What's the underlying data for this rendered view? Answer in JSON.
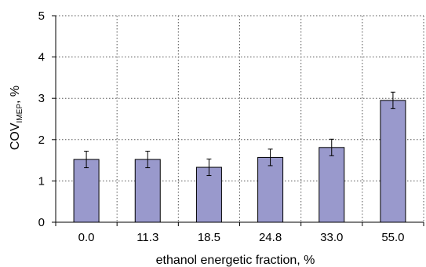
{
  "chart_data": {
    "type": "bar",
    "categories": [
      "0.0",
      "11.3",
      "18.5",
      "24.8",
      "33.0",
      "55.0"
    ],
    "series": [
      {
        "values": [
          1.52,
          1.52,
          1.33,
          1.57,
          1.81,
          2.95
        ],
        "error": [
          0.2,
          0.2,
          0.2,
          0.2,
          0.2,
          0.2
        ]
      }
    ],
    "xlabel": "ethanol energetic fraction, %",
    "ylabel": {
      "main": "COV",
      "subscript": "IMEP",
      "suffix": ", %"
    },
    "ylim": [
      0,
      5
    ],
    "yticks": [
      0,
      1,
      2,
      3,
      4,
      5
    ],
    "grid": "dotted",
    "legend": "none",
    "colors": {
      "bar_fill": "#9999cc",
      "bar_stroke": "#000000",
      "grid": "#555555"
    }
  }
}
